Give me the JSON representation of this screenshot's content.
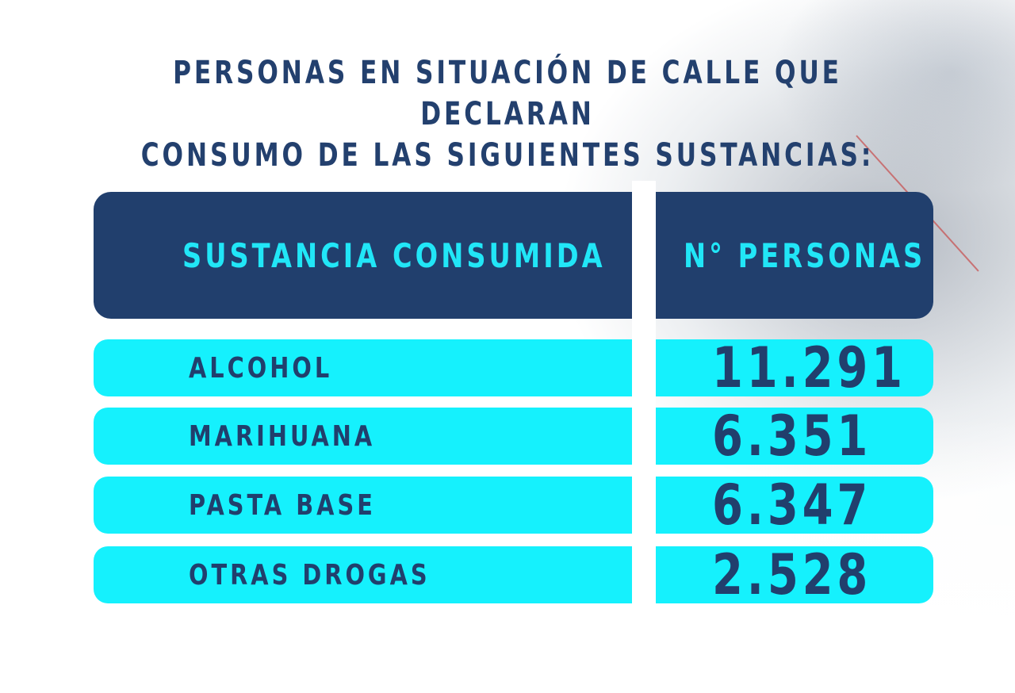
{
  "title": {
    "line1": "PERSONAS EN SITUACIÓN DE CALLE QUE DECLARAN",
    "line2": "CONSUMO DE LAS SIGUIENTES SUSTANCIAS:"
  },
  "colors": {
    "navy": "#213f6d",
    "cyan": "#15f1fd",
    "header_text": "#21e6f7"
  },
  "chart_data": {
    "type": "table",
    "title": "PERSONAS EN SITUACIÓN DE CALLE QUE DECLARAN CONSUMO DE LAS SIGUIENTES SUSTANCIAS:",
    "columns": [
      "SUSTANCIA CONSUMIDA",
      "N° PERSONAS"
    ],
    "rows": [
      {
        "sustancia": "ALCOHOL",
        "personas_label": "11.291",
        "personas": 11291
      },
      {
        "sustancia": "MARIHUANA",
        "personas_label": "6.351",
        "personas": 6351
      },
      {
        "sustancia": "PASTA BASE",
        "personas_label": "6.347",
        "personas": 6347
      },
      {
        "sustancia": "OTRAS DROGAS",
        "personas_label": "2.528",
        "personas": 2528
      }
    ]
  }
}
